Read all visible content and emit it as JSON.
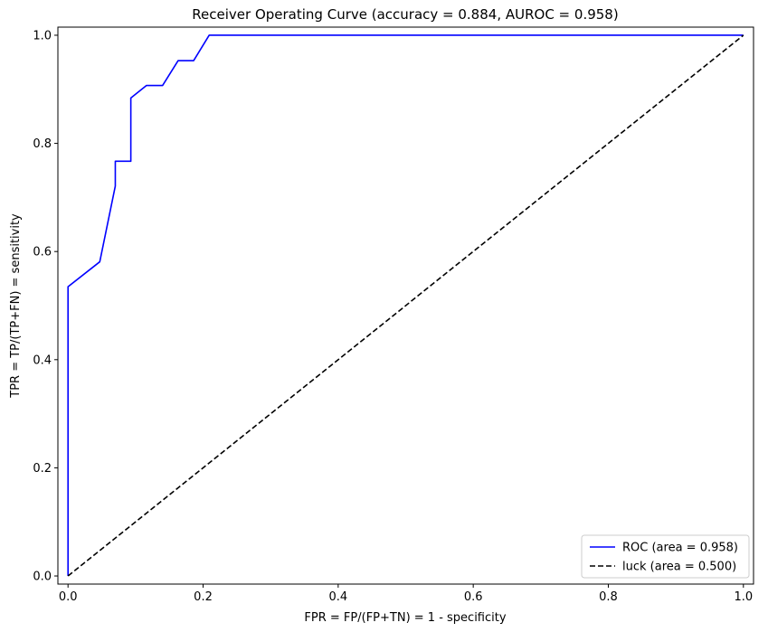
{
  "chart_data": {
    "type": "line",
    "title": "Receiver Operating Curve (accuracy = 0.884, AUROC = 0.958)",
    "xlabel": "FPR = FP/(FP+TN) = 1 - specificity",
    "ylabel": "TPR = TP/(TP+FN) = sensitivity",
    "xlim": [
      -0.015,
      1.015
    ],
    "ylim": [
      -0.015,
      1.015
    ],
    "x_ticks": [
      0.0,
      0.2,
      0.4,
      0.6,
      0.8,
      1.0
    ],
    "y_ticks": [
      0.0,
      0.2,
      0.4,
      0.6,
      0.8,
      1.0
    ],
    "x_tick_labels": [
      "0.0",
      "0.2",
      "0.4",
      "0.6",
      "0.8",
      "1.0"
    ],
    "y_tick_labels": [
      "0.0",
      "0.2",
      "0.4",
      "0.6",
      "0.8",
      "1.0"
    ],
    "grid": false,
    "legend_position": "lower-right",
    "series": [
      {
        "name": "ROC (area = 0.958)",
        "color": "#0000ff",
        "style": "solid",
        "x": [
          0.0,
          0.0,
          0.047,
          0.07,
          0.07,
          0.093,
          0.093,
          0.116,
          0.14,
          0.163,
          0.186,
          0.209,
          0.209,
          1.0
        ],
        "y": [
          0.0,
          0.535,
          0.581,
          0.721,
          0.767,
          0.767,
          0.884,
          0.907,
          0.907,
          0.953,
          0.953,
          1.0,
          1.0,
          1.0
        ]
      },
      {
        "name": "luck (area = 0.500)",
        "color": "#000000",
        "style": "dashed",
        "x": [
          0.0,
          1.0
        ],
        "y": [
          0.0,
          1.0
        ]
      }
    ]
  }
}
